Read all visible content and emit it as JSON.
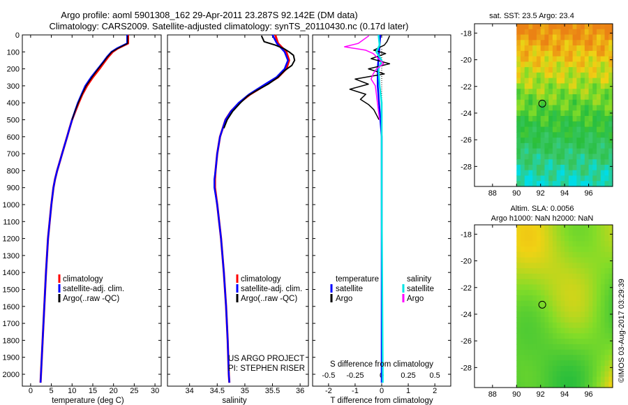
{
  "header": {
    "line1": "Argo profile: aoml 5901308_162 29-Apr-2011 23.287S 92.142E (DM data)",
    "line2": "Climatology: CARS2009. Satellite-adjusted climatology: synTS_20110430.nc (0.17d later)"
  },
  "colors": {
    "climatology": "#ff0000",
    "satellite": "#0000ff",
    "argo": "#000000",
    "sal_satellite": "#00e5e5",
    "sal_argo": "#ff00ff"
  },
  "depth_axis": {
    "ylim": [
      0,
      2070
    ],
    "ticks": [
      "0",
      "100",
      "200",
      "300",
      "400",
      "500",
      "600",
      "700",
      "800",
      "900",
      "1000",
      "1100",
      "1200",
      "1300",
      "1400",
      "1500",
      "1600",
      "1700",
      "1800",
      "1900",
      "2000"
    ]
  },
  "chart_data": [
    {
      "type": "line",
      "name": "temperature",
      "xlabel": "temperature (deg C)",
      "xlim": [
        -2,
        31.5
      ],
      "xticks": [
        "0",
        "5",
        "10",
        "15",
        "20",
        "25",
        "30"
      ],
      "legend": {
        "placement": "bottom-left",
        "items": [
          "climatology",
          "satellite-adj. clim.",
          "Argo(..raw -QC)"
        ]
      },
      "series": [
        {
          "name": "climatology",
          "depth": [
            0,
            50,
            80,
            100,
            130,
            160,
            200,
            250,
            300,
            350,
            400,
            450,
            500,
            550,
            600,
            650,
            700,
            750,
            800,
            850,
            900,
            1000,
            1200,
            1400,
            1600,
            1700,
            1800,
            1900,
            2000,
            2050
          ],
          "values": [
            23.5,
            23.5,
            21.0,
            19.8,
            18.7,
            17.8,
            16.6,
            15.0,
            13.6,
            12.5,
            11.6,
            10.8,
            10.0,
            9.4,
            8.8,
            8.2,
            7.6,
            7.0,
            6.4,
            5.9,
            5.5,
            5.0,
            4.2,
            3.7,
            3.3,
            3.1,
            2.9,
            2.7,
            2.5,
            2.4
          ]
        },
        {
          "name": "satellite-adj. clim.",
          "depth": [
            0,
            50,
            80,
            100,
            130,
            160,
            200,
            250,
            300,
            350,
            400,
            450,
            500,
            550,
            600,
            650,
            700,
            750,
            800,
            850,
            900,
            1000,
            1200,
            1400,
            1600,
            1700,
            1800,
            1900,
            2000,
            2050
          ],
          "values": [
            23.3,
            23.3,
            20.8,
            19.5,
            18.4,
            17.5,
            16.2,
            14.6,
            13.2,
            12.3,
            11.4,
            10.7,
            10.0,
            9.4,
            8.8,
            8.2,
            7.6,
            7.0,
            6.4,
            5.9,
            5.5,
            5.0,
            4.2,
            3.7,
            3.3,
            3.1,
            2.9,
            2.7,
            2.5,
            2.4
          ]
        },
        {
          "name": "Argo(..raw -QC)",
          "depth": [
            5,
            50,
            80,
            100,
            130,
            160,
            200,
            250,
            300,
            350,
            400,
            450,
            500
          ],
          "values": [
            23.4,
            23.4,
            21.0,
            19.6,
            18.5,
            17.6,
            16.3,
            14.8,
            13.4,
            12.4,
            11.5,
            10.7,
            10.0
          ]
        }
      ]
    },
    {
      "type": "line",
      "name": "salinity",
      "xlabel": "salinity",
      "xlim": [
        33.6,
        36.15
      ],
      "xticks": [
        "34",
        "34.5",
        "35",
        "35.5",
        "36"
      ],
      "legend": {
        "placement": "bottom-right",
        "items": [
          "climatology",
          "satellite-adj. clim.",
          "Argo(..raw -QC)"
        ]
      },
      "annotation": [
        "US ARGO PROJECT",
        "PI: STEPHEN RISER"
      ],
      "series": [
        {
          "name": "climatology",
          "depth": [
            0,
            50,
            100,
            150,
            200,
            250,
            300,
            350,
            400,
            450,
            500,
            600,
            700,
            800,
            850,
            900,
            1000,
            1200,
            1400,
            1600,
            1800,
            2000,
            2050
          ],
          "values": [
            35.55,
            35.6,
            35.75,
            35.8,
            35.75,
            35.6,
            35.35,
            35.1,
            34.9,
            34.75,
            34.65,
            34.55,
            34.5,
            34.47,
            34.46,
            34.46,
            34.5,
            34.57,
            34.62,
            34.66,
            34.69,
            34.71,
            34.72
          ]
        },
        {
          "name": "satellite-adj. clim.",
          "depth": [
            0,
            50,
            100,
            150,
            200,
            250,
            300,
            350,
            400,
            450,
            500,
            600,
            700,
            800,
            850,
            900,
            1000,
            1200,
            1400,
            1600,
            1800,
            2000,
            2050
          ],
          "values": [
            35.5,
            35.58,
            35.72,
            35.78,
            35.72,
            35.57,
            35.32,
            35.08,
            34.89,
            34.75,
            34.65,
            34.55,
            34.5,
            34.47,
            34.45,
            34.45,
            34.5,
            34.57,
            34.62,
            34.66,
            34.69,
            34.71,
            34.72
          ]
        },
        {
          "name": "Argo(..raw -QC)",
          "depth": [
            5,
            40,
            60,
            80,
            100,
            120,
            150,
            180,
            210,
            250,
            290,
            330,
            360,
            400,
            450,
            500,
            550
          ],
          "values": [
            35.3,
            35.35,
            35.55,
            35.7,
            35.8,
            35.88,
            35.9,
            35.85,
            35.72,
            35.6,
            35.42,
            35.2,
            35.05,
            34.92,
            34.78,
            34.68,
            34.62
          ]
        }
      ]
    },
    {
      "type": "line",
      "name": "differences",
      "xlabel": "T difference from climatology",
      "xlabel2": "S difference from climatology",
      "xlim": [
        -2.6,
        2.6
      ],
      "xticks": [
        "-2",
        "-1",
        "0",
        "1",
        "2"
      ],
      "xticks_s": [
        "-0.5",
        "-0.25",
        "0",
        "0.25",
        "0.5"
      ],
      "legend": {
        "placement": "bottom",
        "temperature_head": "temperature",
        "salinity_head": "salinity",
        "items": [
          "satellite",
          "Argo",
          "satellite",
          "Argo"
        ]
      },
      "series": [
        {
          "name": "temperature satellite",
          "depth": [
            0,
            100,
            200,
            300,
            400,
            500,
            600,
            800,
            1000,
            1500,
            2000,
            2050
          ],
          "values": [
            -0.05,
            -0.1,
            -0.15,
            -0.15,
            -0.1,
            -0.05,
            0,
            0,
            0,
            0,
            0,
            0
          ]
        },
        {
          "name": "temperature Argo",
          "depth": [
            5,
            40,
            60,
            90,
            110,
            140,
            170,
            200,
            230,
            260,
            290,
            320,
            350,
            380,
            410,
            440,
            470,
            500
          ],
          "values": [
            0.3,
            0.2,
            0.1,
            -0.3,
            0.15,
            -0.4,
            0.3,
            -0.5,
            0.1,
            -1.0,
            -0.5,
            -1.2,
            -0.6,
            -0.8,
            -0.5,
            -0.3,
            -0.2,
            -0.1
          ]
        },
        {
          "name": "salinity satellite",
          "depth": [
            0,
            60,
            100,
            150,
            200,
            300,
            400,
            500,
            700,
            1000,
            1500,
            2000,
            2050
          ],
          "values": [
            -0.03,
            -0.02,
            -0.05,
            0,
            -0.03,
            -0.02,
            0,
            0,
            0,
            0,
            0.005,
            0.01,
            0.01
          ]
        },
        {
          "name": "salinity Argo",
          "depth": [
            5,
            50,
            70,
            90,
            110,
            140,
            170,
            200,
            230,
            260,
            300,
            350,
            400,
            450,
            500
          ],
          "values": [
            -0.12,
            -0.22,
            -0.35,
            -0.15,
            -0.08,
            -0.03,
            0.02,
            -0.05,
            -0.08,
            -0.1,
            -0.06,
            -0.05,
            -0.04,
            -0.03,
            -0.02
          ]
        }
      ]
    }
  ],
  "maps": [
    {
      "title": "sat. SST: 23.5 Argo: 23.4",
      "field": "SST",
      "xlim": [
        86.5,
        98
      ],
      "ylim": [
        -29.5,
        -17.3
      ],
      "xticks": [
        "88",
        "90",
        "92",
        "94",
        "96"
      ],
      "yticks": [
        "-18",
        "-20",
        "-22",
        "-24",
        "-26",
        "-28"
      ],
      "point": [
        92.142,
        -23.287
      ]
    },
    {
      "title_line1": "Altim. SLA: 0.0056",
      "title_line2": "Argo h1000: NaN h2000: NaN",
      "field": "SLA",
      "xlim": [
        86.5,
        98
      ],
      "ylim": [
        -29.5,
        -17.3
      ],
      "xticks": [
        "88",
        "90",
        "92",
        "94",
        "96"
      ],
      "yticks": [
        "-18",
        "-20",
        "-22",
        "-24",
        "-26",
        "-28"
      ],
      "point": [
        92.142,
        -23.287
      ]
    }
  ],
  "credit": "©IMOS 03-Aug-2017 03:29:39"
}
